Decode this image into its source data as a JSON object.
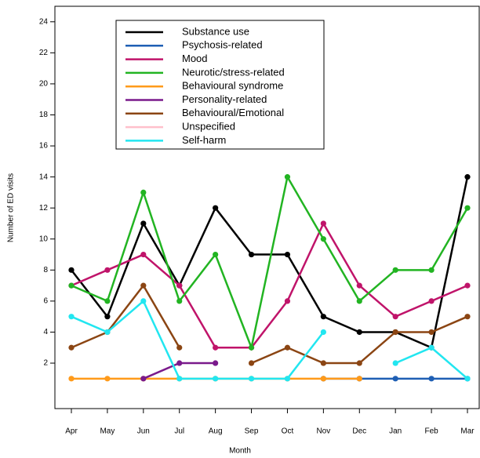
{
  "chart_data": {
    "type": "line",
    "y_label": "Number of ED visits",
    "x_label": "Month",
    "categories": [
      "Apr",
      "May",
      "Jun",
      "Jul",
      "Aug",
      "Sep",
      "Oct",
      "Nov",
      "Dec",
      "Jan",
      "Feb",
      "Mar"
    ],
    "ylim": [
      -0.93,
      25
    ],
    "yticks": [
      2,
      4,
      6,
      8,
      10,
      12,
      14,
      16,
      18,
      20,
      22,
      24
    ],
    "series": [
      {
        "name": "Substance use",
        "color": "#000000",
        "values": [
          8,
          5,
          11,
          7,
          12,
          9,
          9,
          5,
          4,
          4,
          3,
          14
        ]
      },
      {
        "name": "Psychosis-related",
        "color": "#1f5fb4",
        "values": [
          null,
          null,
          null,
          null,
          null,
          null,
          null,
          1,
          1,
          1,
          1,
          1
        ]
      },
      {
        "name": "Mood",
        "color": "#c0146a",
        "values": [
          7,
          8,
          9,
          7,
          3,
          3,
          6,
          11,
          7,
          5,
          6,
          7
        ]
      },
      {
        "name": "Neurotic/stress-related",
        "color": "#22b422",
        "values": [
          7,
          6,
          13,
          6,
          9,
          3,
          14,
          10,
          6,
          8,
          8,
          12
        ]
      },
      {
        "name": "Behavioural syndrome",
        "color": "#ff9a1a",
        "values": [
          1,
          1,
          1,
          1,
          1,
          1,
          1,
          1,
          1,
          null,
          null,
          null
        ]
      },
      {
        "name": "Personality-related",
        "color": "#7a1a8c",
        "values": [
          null,
          null,
          1,
          2,
          2,
          null,
          null,
          null,
          null,
          null,
          null,
          null
        ]
      },
      {
        "name": "Behavioural/Emotional",
        "color": "#8b4513",
        "values": [
          3,
          4,
          7,
          3,
          null,
          2,
          3,
          2,
          2,
          4,
          4,
          5
        ]
      },
      {
        "name": "Unspecified",
        "color": "#ffc0cb",
        "values": [
          null,
          null,
          null,
          null,
          null,
          null,
          null,
          null,
          null,
          null,
          null,
          null
        ]
      },
      {
        "name": "Self-harm",
        "color": "#22e6f0",
        "values": [
          5,
          4,
          6,
          1,
          1,
          1,
          1,
          4,
          null,
          2,
          3,
          1
        ]
      }
    ]
  }
}
